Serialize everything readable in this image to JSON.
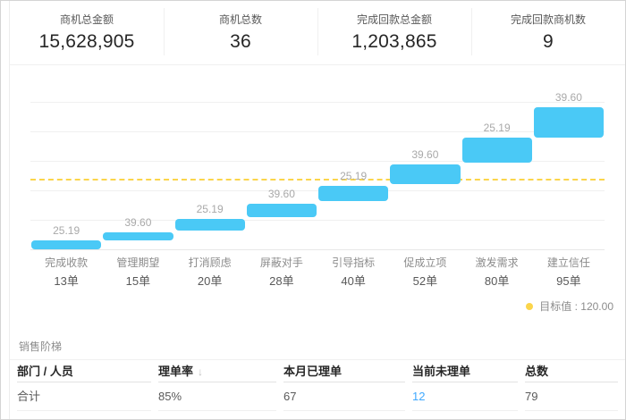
{
  "kpi_cards": [
    {
      "label": "商机总金额",
      "value": "15,628,905"
    },
    {
      "label": "商机总数",
      "value": "36"
    },
    {
      "label": "完成回款总金额",
      "value": "1,203,865"
    },
    {
      "label": "完成回款商机数",
      "value": "9"
    }
  ],
  "chart_data": {
    "type": "bar",
    "subtype": "waterfall-stairs",
    "title": "",
    "categories": [
      "完成收款",
      "管理期望",
      "打消顾虑",
      "屏蔽对手",
      "引导指标",
      "促成立项",
      "激发需求",
      "建立信任"
    ],
    "deal_counts": [
      "13单",
      "15单",
      "20单",
      "28单",
      "40单",
      "52单",
      "80单",
      "95单"
    ],
    "series": [
      {
        "name": "阶梯值",
        "values": [
          25.19,
          39.6,
          25.19,
          39.6,
          25.19,
          39.6,
          25.19,
          39.6
        ]
      }
    ],
    "bar_labels": [
      "25.19",
      "39.60",
      "25.19",
      "39.60",
      "25.19",
      "39.60",
      "25.19",
      "39.60"
    ],
    "bar_ranges": [
      [
        1,
        16
      ],
      [
        17,
        30
      ],
      [
        33,
        53
      ],
      [
        56,
        79
      ],
      [
        83,
        109
      ],
      [
        112,
        145
      ],
      [
        148,
        191
      ],
      [
        191,
        242
      ]
    ],
    "target": {
      "label": "目标值",
      "value": "120.00",
      "numeric": 120,
      "legend_text": "目标值 : 120.00"
    },
    "ylim": [
      0,
      300
    ],
    "grid_step": 50,
    "grid": true,
    "y_axis_labels": false,
    "legend_position": "bottom-right",
    "colors": {
      "bar": "#4ac9f6",
      "target": "#fbd54b",
      "value_label": "#a9a9a9"
    }
  },
  "table": {
    "section_title": "销售阶梯",
    "columns": [
      "部门 / 人员",
      "理单率",
      "本月已理单",
      "当前未理单",
      "总数"
    ],
    "sort": {
      "column": "理单率",
      "direction": "desc",
      "icon": "↓"
    },
    "rows": [
      {
        "department": "合计",
        "clear_rate": "85%",
        "cleared_this_month": "67",
        "current_uncleared": "12",
        "total": "79"
      }
    ]
  }
}
